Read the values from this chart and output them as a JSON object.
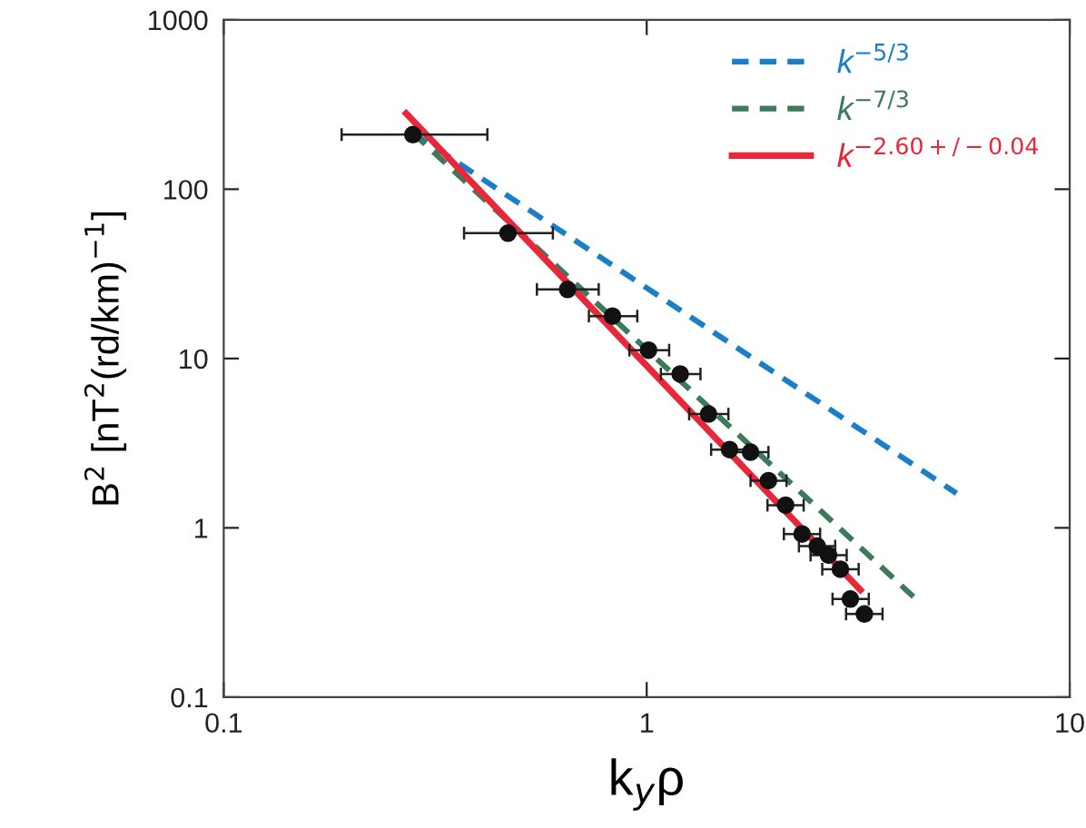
{
  "chart_data": {
    "type": "scatter",
    "xlabel": "k$_{y}$ρ",
    "ylabel": "B$^{2}$ [nT$^{2}$(rd/km)$^{−1}$]",
    "log": "xy",
    "xlim": [
      0.1,
      10
    ],
    "ylim": [
      0.1,
      1000
    ],
    "xticks": [
      0.1,
      1,
      {
        "value": 10,
        "label": "10"
      }
    ],
    "yticks": [
      0.1,
      1,
      10,
      100,
      1000
    ],
    "grid": false,
    "legend": "top right",
    "series": [
      {
        "type": "line",
        "name": "k$^{−5/3}$",
        "color": "#1a7fc8",
        "line_style": "dashed",
        "marker": "none",
        "x": [
          0.28,
          5.4
        ],
        "values": [
          215,
          1.6
        ]
      },
      {
        "type": "line",
        "name": "k$^{−7/3}$",
        "color": "#3d7a5a",
        "line_style": "dashed",
        "marker": "none",
        "x": [
          0.28,
          4.43
        ],
        "values": [
          215,
          0.36
        ]
      },
      {
        "type": "line",
        "name": "k$^{−2.60+/−0.04}$",
        "color": "#e8283a",
        "line_style": "solid",
        "marker": "none",
        "x": [
          0.27,
          3.2
        ],
        "values": [
          280,
          0.43
        ]
      },
      {
        "color": "#111111",
        "marker": "circle",
        "x": [
          0.28,
          0.47,
          0.65,
          0.83,
          1.01,
          1.2,
          1.4,
          1.57,
          1.76,
          1.94,
          2.13,
          2.33,
          2.53,
          2.69,
          2.87,
          3.03,
          3.27
        ],
        "values": [
          210,
          55,
          25.6,
          17.8,
          11.2,
          8.1,
          4.7,
          2.9,
          2.8,
          1.9,
          1.36,
          0.92,
          0.78,
          0.69,
          0.57,
          0.38,
          0.31
        ],
        "xerrors": [
          [
            0.19,
            0.42
          ],
          [
            0.37,
            0.6
          ],
          [
            0.55,
            0.77
          ],
          [
            0.73,
            0.95
          ],
          [
            0.91,
            1.13
          ],
          [
            1.08,
            1.34
          ],
          [
            1.26,
            1.56
          ],
          [
            1.42,
            1.73
          ],
          [
            1.59,
            1.94
          ],
          [
            1.76,
            2.14
          ],
          [
            1.93,
            2.35
          ],
          [
            2.11,
            2.57
          ],
          [
            2.29,
            2.79
          ],
          [
            2.44,
            2.97
          ],
          [
            2.6,
            3.17
          ],
          [
            2.75,
            3.35
          ],
          [
            2.96,
            3.61
          ]
        ]
      }
    ]
  }
}
